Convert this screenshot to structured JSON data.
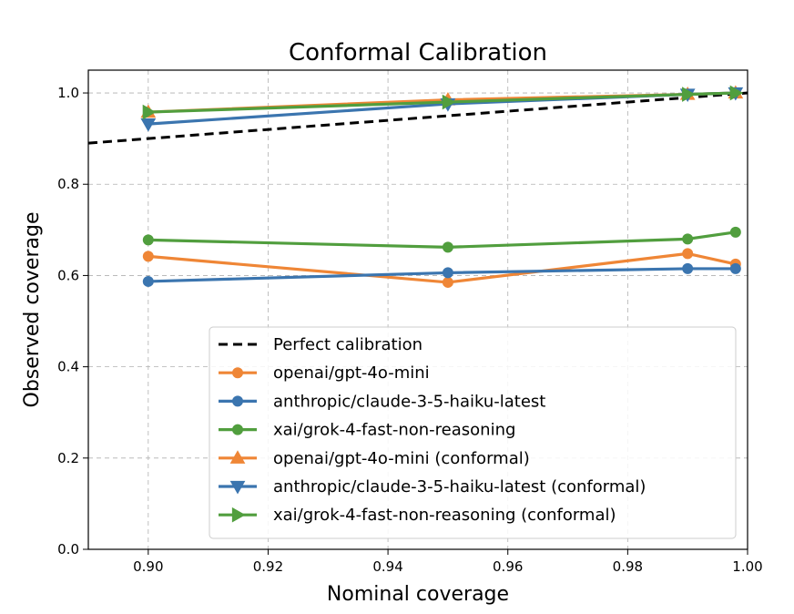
{
  "chart_data": {
    "type": "line",
    "title": "Conformal Calibration",
    "xlabel": "Nominal coverage",
    "ylabel": "Observed coverage",
    "xlim": [
      0.89,
      1.0
    ],
    "ylim": [
      0.0,
      1.05
    ],
    "xticks": [
      0.9,
      0.92,
      0.94,
      0.96,
      0.98,
      1.0
    ],
    "xtick_labels": [
      "0.90",
      "0.92",
      "0.94",
      "0.96",
      "0.98",
      "1.00"
    ],
    "yticks": [
      0.0,
      0.2,
      0.4,
      0.6,
      0.8,
      1.0
    ],
    "ytick_labels": [
      "0.0",
      "0.2",
      "0.4",
      "0.6",
      "0.8",
      "1.0"
    ],
    "grid": true,
    "legend_position": "lower-center",
    "x": [
      0.9,
      0.95,
      0.99,
      0.998
    ],
    "reference": {
      "name": "Perfect calibration",
      "x": [
        0.89,
        1.0
      ],
      "y": [
        0.89,
        1.0
      ],
      "color": "#000000",
      "style": "dashed"
    },
    "series": [
      {
        "name": "openai/gpt-4o-mini",
        "values": [
          0.642,
          0.585,
          0.648,
          0.625
        ],
        "color": "#ef8636",
        "marker": "circle"
      },
      {
        "name": "anthropic/claude-3-5-haiku-latest",
        "values": [
          0.587,
          0.606,
          0.615,
          0.615
        ],
        "color": "#3b75af",
        "marker": "circle"
      },
      {
        "name": "xai/grok-4-fast-non-reasoning",
        "values": [
          0.678,
          0.662,
          0.68,
          0.695
        ],
        "color": "#519e3e",
        "marker": "circle"
      },
      {
        "name": "openai/gpt-4o-mini (conformal)",
        "values": [
          0.958,
          0.985,
          0.997,
          1.0
        ],
        "color": "#ef8636",
        "marker": "triangle-up"
      },
      {
        "name": "anthropic/claude-3-5-haiku-latest (conformal)",
        "values": [
          0.932,
          0.976,
          0.997,
          1.0
        ],
        "color": "#3b75af",
        "marker": "triangle-down"
      },
      {
        "name": "xai/grok-4-fast-non-reasoning (conformal)",
        "values": [
          0.958,
          0.98,
          0.997,
          1.0
        ],
        "color": "#519e3e",
        "marker": "triangle-right"
      }
    ]
  }
}
